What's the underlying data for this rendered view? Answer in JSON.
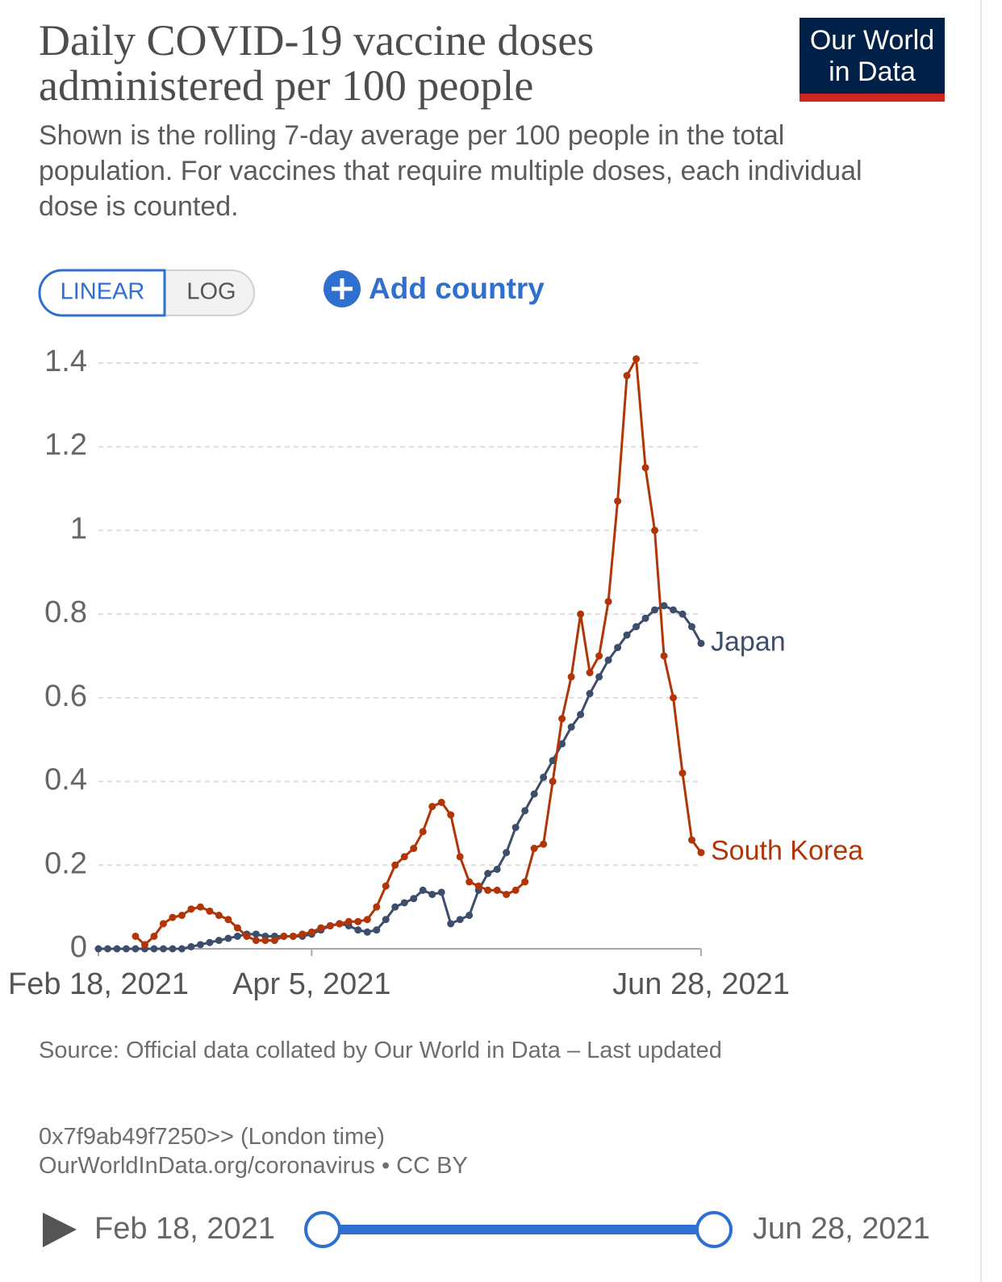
{
  "chart_data": {
    "type": "line",
    "title": "Daily COVID-19 vaccine doses administered per 100 people",
    "subtitle": "Shown is the rolling 7-day average per 100 people in the total population. For vaccines that require multiple doses, each individual dose is counted.",
    "source": "Source: Official data collated by Our World in Data – Last updated",
    "footnote": "0x7f9ab49f7250>> (London time)",
    "license": "OurWorldInData.org/coronavirus • CC BY",
    "x": [
      "2021-02-18",
      "2021-02-20",
      "2021-02-22",
      "2021-02-24",
      "2021-02-26",
      "2021-02-28",
      "2021-03-02",
      "2021-03-04",
      "2021-03-06",
      "2021-03-08",
      "2021-03-10",
      "2021-03-12",
      "2021-03-14",
      "2021-03-16",
      "2021-03-18",
      "2021-03-20",
      "2021-03-22",
      "2021-03-24",
      "2021-03-26",
      "2021-03-28",
      "2021-03-30",
      "2021-04-01",
      "2021-04-03",
      "2021-04-05",
      "2021-04-07",
      "2021-04-09",
      "2021-04-11",
      "2021-04-13",
      "2021-04-15",
      "2021-04-17",
      "2021-04-19",
      "2021-04-21",
      "2021-04-23",
      "2021-04-25",
      "2021-04-27",
      "2021-04-29",
      "2021-05-01",
      "2021-05-03",
      "2021-05-05",
      "2021-05-07",
      "2021-05-09",
      "2021-05-11",
      "2021-05-13",
      "2021-05-15",
      "2021-05-17",
      "2021-05-19",
      "2021-05-21",
      "2021-05-23",
      "2021-05-25",
      "2021-05-27",
      "2021-05-29",
      "2021-05-31",
      "2021-06-02",
      "2021-06-04",
      "2021-06-06",
      "2021-06-08",
      "2021-06-10",
      "2021-06-12",
      "2021-06-14",
      "2021-06-16",
      "2021-06-18",
      "2021-06-20",
      "2021-06-22",
      "2021-06-24",
      "2021-06-26",
      "2021-06-28"
    ],
    "series": [
      {
        "name": "Japan",
        "color": "#3c4e6b",
        "values": [
          0,
          0,
          0,
          0,
          0,
          0,
          0,
          0,
          0,
          0,
          0.005,
          0.01,
          0.015,
          0.02,
          0.025,
          0.03,
          0.035,
          0.035,
          0.03,
          0.03,
          0.03,
          0.03,
          0.03,
          0.035,
          0.045,
          0.055,
          0.06,
          0.055,
          0.045,
          0.04,
          0.045,
          0.07,
          0.1,
          0.11,
          0.12,
          0.14,
          0.13,
          0.135,
          0.06,
          0.07,
          0.08,
          0.14,
          0.18,
          0.19,
          0.23,
          0.29,
          0.33,
          0.37,
          0.41,
          0.45,
          0.49,
          0.53,
          0.56,
          0.61,
          0.65,
          0.69,
          0.72,
          0.75,
          0.77,
          0.79,
          0.81,
          0.82,
          0.81,
          0.8,
          0.77,
          0.73
        ]
      },
      {
        "name": "South Korea",
        "color": "#b13507",
        "values": [
          null,
          null,
          null,
          null,
          0.03,
          0.01,
          0.03,
          0.06,
          0.075,
          0.08,
          0.095,
          0.1,
          0.09,
          0.08,
          0.07,
          0.05,
          0.03,
          0.02,
          0.02,
          0.02,
          0.03,
          0.03,
          0.035,
          0.04,
          0.05,
          0.055,
          0.06,
          0.065,
          0.065,
          0.07,
          0.1,
          0.15,
          0.2,
          0.22,
          0.24,
          0.28,
          0.34,
          0.35,
          0.32,
          0.22,
          0.16,
          0.15,
          0.14,
          0.14,
          0.13,
          0.14,
          0.16,
          0.24,
          0.25,
          0.4,
          0.55,
          0.65,
          0.8,
          0.66,
          0.7,
          0.83,
          1.07,
          1.37,
          1.41,
          1.15,
          1.0,
          0.7,
          0.6,
          0.42,
          0.26,
          0.23
        ]
      }
    ],
    "xlim": [
      "2021-02-18",
      "2021-06-28"
    ],
    "xticks": [
      {
        "value": "2021-02-18",
        "label": "Feb 18, 2021"
      },
      {
        "value": "2021-04-05",
        "label": "Apr 5, 2021"
      },
      {
        "value": "2021-06-28",
        "label": "Jun 28, 2021"
      }
    ],
    "ylim": [
      0,
      1.4
    ],
    "yticks": [
      0,
      0.2,
      0.4,
      0.6,
      0.8,
      1,
      1.2,
      1.4
    ],
    "grid": true
  },
  "logo": {
    "line1": "Our World",
    "line2": "in Data"
  },
  "controls": {
    "linear": "LINEAR",
    "log": "LOG",
    "add_country": "Add country"
  },
  "timeline": {
    "start": "Feb 18, 2021",
    "end": "Jun 28, 2021"
  }
}
